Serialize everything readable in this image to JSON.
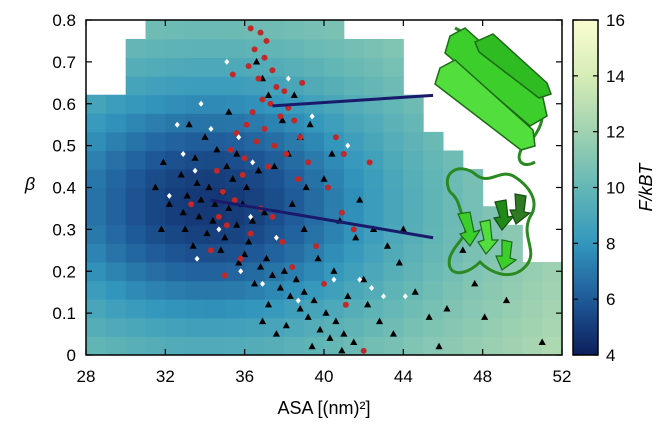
{
  "chart_data": {
    "type": "scatter",
    "heatmap_background": true,
    "xlabel": "ASA [(nm)²]",
    "ylabel": "β",
    "colorbar_label": "F/kBT",
    "xlim": [
      28,
      52
    ],
    "ylim": [
      0,
      0.8
    ],
    "xticks": [
      28,
      32,
      36,
      40,
      44,
      48,
      52
    ],
    "yticks": [
      0,
      0.1,
      0.2,
      0.3,
      0.4,
      0.5,
      0.6,
      0.7,
      0.8
    ],
    "xtick_labels": [
      "28",
      "32",
      "36",
      "40",
      "44",
      "48",
      "52"
    ],
    "ytick_labels": [
      "0",
      "0.1",
      "0.2",
      "0.3",
      "0.4",
      "0.5",
      "0.6",
      "0.7",
      "0.8"
    ],
    "colorbar_range": [
      4,
      16
    ],
    "colorbar_ticks": [
      "4",
      "6",
      "8",
      "10",
      "12",
      "14",
      "16"
    ],
    "colorscale": [
      "#0d1f5c",
      "#1f5a98",
      "#3397bd",
      "#64b7b5",
      "#a0d2b1",
      "#d7ecb6",
      "#fafdd2"
    ],
    "heatmap_bins": {
      "x_start": 28,
      "x_step": 1,
      "y_start": 0,
      "y_step": 0.0444,
      "nx": 24,
      "ny": 18
    },
    "series": [
      {
        "marker": "triangle",
        "color": "#000000",
        "points": [
          [
            33.2,
            0.55
          ],
          [
            34.0,
            0.52
          ],
          [
            33.5,
            0.47
          ],
          [
            34.6,
            0.49
          ],
          [
            35.1,
            0.45
          ],
          [
            32.8,
            0.43
          ],
          [
            33.6,
            0.41
          ],
          [
            34.2,
            0.4
          ],
          [
            34.9,
            0.39
          ],
          [
            35.4,
            0.42
          ],
          [
            33.1,
            0.38
          ],
          [
            33.8,
            0.37
          ],
          [
            34.5,
            0.36
          ],
          [
            35.2,
            0.35
          ],
          [
            32.9,
            0.34
          ],
          [
            33.7,
            0.33
          ],
          [
            34.4,
            0.32
          ],
          [
            35.6,
            0.31
          ],
          [
            33.0,
            0.3
          ],
          [
            34.1,
            0.29
          ],
          [
            35.0,
            0.28
          ],
          [
            36.2,
            0.27
          ],
          [
            33.4,
            0.26
          ],
          [
            34.8,
            0.25
          ],
          [
            36.0,
            0.24
          ],
          [
            37.1,
            0.23
          ],
          [
            35.7,
            0.22
          ],
          [
            36.8,
            0.21
          ],
          [
            38.0,
            0.2
          ],
          [
            37.4,
            0.19
          ],
          [
            38.6,
            0.18
          ],
          [
            36.5,
            0.17
          ],
          [
            37.8,
            0.16
          ],
          [
            39.0,
            0.15
          ],
          [
            38.3,
            0.14
          ],
          [
            39.5,
            0.13
          ],
          [
            37.2,
            0.12
          ],
          [
            38.8,
            0.11
          ],
          [
            40.1,
            0.1
          ],
          [
            39.2,
            0.09
          ],
          [
            40.6,
            0.08
          ],
          [
            38.1,
            0.07
          ],
          [
            39.8,
            0.06
          ],
          [
            41.0,
            0.05
          ],
          [
            40.3,
            0.04
          ],
          [
            41.5,
            0.03
          ],
          [
            39.4,
            0.02
          ],
          [
            40.9,
            0.01
          ],
          [
            37.6,
            0.05
          ],
          [
            36.9,
            0.08
          ],
          [
            37.5,
            0.45
          ],
          [
            38.2,
            0.48
          ],
          [
            38.8,
            0.52
          ],
          [
            37.9,
            0.56
          ],
          [
            38.4,
            0.36
          ],
          [
            39.1,
            0.4
          ],
          [
            40.0,
            0.42
          ],
          [
            40.8,
            0.32
          ],
          [
            41.6,
            0.28
          ],
          [
            42.5,
            0.3
          ],
          [
            43.2,
            0.26
          ],
          [
            43.8,
            0.22
          ],
          [
            42.0,
            0.18
          ],
          [
            41.2,
            0.14
          ],
          [
            40.5,
            0.2
          ],
          [
            36.6,
            0.7
          ],
          [
            36.9,
            0.66
          ],
          [
            37.2,
            0.62
          ],
          [
            35.2,
            0.58
          ],
          [
            31.5,
            0.4
          ],
          [
            31.8,
            0.3
          ],
          [
            32.2,
            0.36
          ],
          [
            31.9,
            0.46
          ],
          [
            35.9,
            0.36
          ],
          [
            36.4,
            0.32
          ],
          [
            37.0,
            0.34
          ],
          [
            36.1,
            0.4
          ],
          [
            36.7,
            0.44
          ],
          [
            35.6,
            0.48
          ],
          [
            42.8,
            0.08
          ],
          [
            43.5,
            0.05
          ],
          [
            42.2,
            0.12
          ],
          [
            44.6,
            0.15
          ],
          [
            45.3,
            0.09
          ],
          [
            46.2,
            0.11
          ],
          [
            47.6,
            0.17
          ],
          [
            49.2,
            0.13
          ],
          [
            51.0,
            0.03
          ],
          [
            45.8,
            0.02
          ],
          [
            44.0,
            0.3
          ],
          [
            47.0,
            0.25
          ],
          [
            48.1,
            0.09
          ],
          [
            39.7,
            0.23
          ],
          [
            39.0,
            0.3
          ],
          [
            41.8,
            0.37
          ],
          [
            40.4,
            0.48
          ],
          [
            39.3,
            0.55
          ],
          [
            38.5,
            0.62
          ]
        ]
      },
      {
        "marker": "circle",
        "color": "#c0282a",
        "points": [
          [
            36.3,
            0.78
          ],
          [
            36.8,
            0.77
          ],
          [
            37.1,
            0.75
          ],
          [
            36.5,
            0.73
          ],
          [
            37.0,
            0.71
          ],
          [
            36.2,
            0.69
          ],
          [
            37.4,
            0.68
          ],
          [
            36.7,
            0.66
          ],
          [
            37.6,
            0.64
          ],
          [
            38.0,
            0.63
          ],
          [
            36.9,
            0.61
          ],
          [
            37.3,
            0.6
          ],
          [
            38.2,
            0.59
          ],
          [
            36.4,
            0.58
          ],
          [
            37.8,
            0.57
          ],
          [
            38.5,
            0.56
          ],
          [
            36.1,
            0.55
          ],
          [
            37.0,
            0.54
          ],
          [
            35.6,
            0.53
          ],
          [
            38.8,
            0.52
          ],
          [
            36.6,
            0.51
          ],
          [
            37.5,
            0.5
          ],
          [
            35.3,
            0.49
          ],
          [
            38.1,
            0.48
          ],
          [
            36.0,
            0.47
          ],
          [
            39.2,
            0.46
          ],
          [
            37.2,
            0.45
          ],
          [
            34.6,
            0.44
          ],
          [
            35.9,
            0.43
          ],
          [
            38.7,
            0.42
          ],
          [
            40.2,
            0.4
          ],
          [
            41.0,
            0.48
          ],
          [
            40.6,
            0.52
          ],
          [
            42.3,
            0.46
          ],
          [
            34.9,
            0.39
          ],
          [
            35.5,
            0.37
          ],
          [
            36.8,
            0.35
          ],
          [
            37.4,
            0.33
          ],
          [
            35.1,
            0.31
          ],
          [
            36.3,
            0.29
          ],
          [
            37.9,
            0.27
          ],
          [
            34.3,
            0.25
          ],
          [
            35.8,
            0.23
          ],
          [
            38.4,
            0.21
          ],
          [
            39.6,
            0.26
          ],
          [
            40.9,
            0.34
          ],
          [
            41.5,
            0.3
          ],
          [
            40.0,
            0.17
          ],
          [
            41.1,
            0.12
          ],
          [
            35.0,
            0.19
          ],
          [
            33.3,
            0.36
          ],
          [
            34.7,
            0.33
          ],
          [
            42.0,
            0.01
          ],
          [
            38.9,
            0.65
          ],
          [
            35.4,
            0.67
          ]
        ]
      },
      {
        "marker": "diamond",
        "color": "#ffffff",
        "points": [
          [
            35.1,
            0.7
          ],
          [
            38.2,
            0.66
          ],
          [
            33.8,
            0.6
          ],
          [
            32.6,
            0.55
          ],
          [
            34.3,
            0.54
          ],
          [
            35.7,
            0.52
          ],
          [
            39.4,
            0.57
          ],
          [
            41.2,
            0.5
          ],
          [
            32.9,
            0.48
          ],
          [
            33.5,
            0.44
          ],
          [
            36.4,
            0.46
          ],
          [
            32.2,
            0.38
          ],
          [
            34.7,
            0.3
          ],
          [
            35.8,
            0.2
          ],
          [
            36.9,
            0.17
          ],
          [
            33.6,
            0.23
          ],
          [
            42.4,
            0.16
          ],
          [
            43.0,
            0.14
          ],
          [
            44.1,
            0.14
          ],
          [
            38.7,
            0.13
          ],
          [
            40.5,
            0.18
          ],
          [
            41.8,
            0.18
          ],
          [
            37.6,
            0.28
          ],
          [
            36.3,
            0.33
          ]
        ]
      }
    ],
    "annotation_lines": [
      {
        "from": [
          37.4,
          0.595
        ],
        "to": [
          45.5,
          0.62
        ],
        "color": "#1a1a6b"
      },
      {
        "from": [
          34.3,
          0.37
        ],
        "to": [
          45.5,
          0.28
        ],
        "color": "#1a1a6b"
      }
    ],
    "insets": [
      {
        "icon": "beta-hairpin-structure-icon",
        "color": "#3ccf2c"
      },
      {
        "icon": "beta-sheet-structure-icon",
        "color": "#3ccf2c"
      }
    ]
  }
}
